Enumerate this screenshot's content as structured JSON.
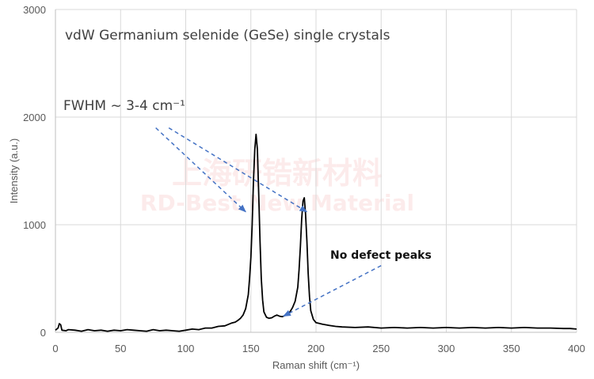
{
  "chart_data": {
    "type": "line",
    "xlabel": "Raman shift (cm⁻¹)",
    "ylabel": "Intensity (a.u.)",
    "xlim": [
      0,
      400
    ],
    "ylim": [
      0,
      3000
    ],
    "x_ticks": [
      "0",
      "50",
      "100",
      "150",
      "200",
      "250",
      "300",
      "350",
      "400"
    ],
    "y_ticks": [
      "0",
      "1000",
      "2000",
      "3000"
    ],
    "grid": true,
    "legend": "none",
    "series": [
      {
        "color": "#000000",
        "x": [
          0,
          2,
          3,
          4,
          5,
          8,
          10,
          15,
          20,
          25,
          30,
          35,
          40,
          45,
          50,
          55,
          60,
          65,
          70,
          75,
          80,
          85,
          90,
          95,
          100,
          105,
          110,
          115,
          120,
          125,
          130,
          135,
          138,
          140,
          142,
          144,
          146,
          148,
          149,
          150,
          151,
          152,
          153,
          154,
          155,
          156,
          157,
          158,
          159,
          160,
          162,
          164,
          166,
          168,
          170,
          172,
          174,
          176,
          178,
          180,
          182,
          184,
          186,
          187,
          188,
          189,
          190,
          191,
          192,
          193,
          194,
          195,
          196,
          198,
          200,
          205,
          210,
          215,
          220,
          230,
          240,
          250,
          260,
          270,
          280,
          290,
          300,
          310,
          320,
          330,
          340,
          350,
          360,
          370,
          380,
          390,
          395,
          400
        ],
        "y": [
          20,
          40,
          80,
          70,
          20,
          15,
          25,
          20,
          10,
          25,
          15,
          20,
          10,
          20,
          15,
          25,
          20,
          15,
          10,
          25,
          15,
          20,
          15,
          10,
          20,
          30,
          25,
          40,
          40,
          55,
          60,
          85,
          95,
          110,
          130,
          160,
          220,
          350,
          500,
          700,
          1000,
          1400,
          1700,
          1840,
          1700,
          1300,
          850,
          500,
          300,
          190,
          140,
          130,
          135,
          150,
          160,
          150,
          145,
          155,
          170,
          190,
          230,
          290,
          420,
          580,
          800,
          1050,
          1220,
          1250,
          1100,
          850,
          550,
          330,
          200,
          120,
          90,
          75,
          65,
          55,
          50,
          45,
          50,
          40,
          45,
          40,
          45,
          40,
          45,
          40,
          45,
          40,
          45,
          40,
          45,
          40,
          40,
          35,
          35,
          30
        ]
      }
    ],
    "annotations": [
      {
        "text": "vdW Germanium selenide (GeSe) single crystals"
      },
      {
        "text": "FWHM ~ 3-4 cm⁻¹"
      },
      {
        "text": "No defect peaks"
      }
    ],
    "arrows": [
      {
        "from": [
          77,
          1900
        ],
        "to": [
          146,
          1120
        ]
      },
      {
        "from": [
          87,
          1900
        ],
        "to": [
          193,
          1120
        ]
      },
      {
        "from": [
          250,
          620
        ],
        "to": [
          175,
          150
        ]
      }
    ],
    "arrow_color": "#4472c4"
  },
  "watermark": {
    "cn": "上海研锆新材料",
    "en": "RD-Best New Material"
  }
}
